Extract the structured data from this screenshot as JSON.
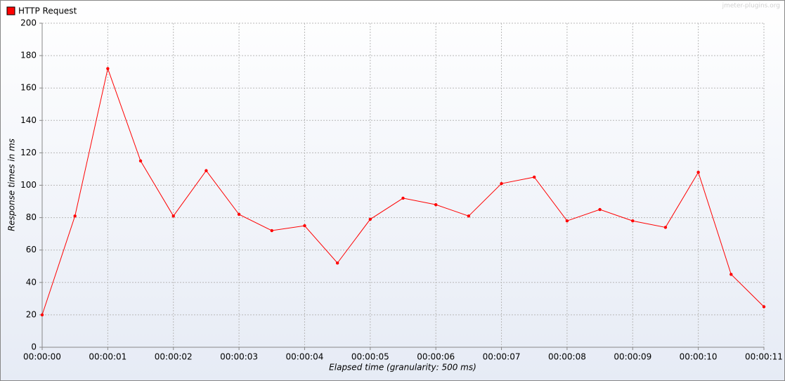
{
  "chart_data": {
    "type": "line",
    "watermark": "jmeter-plugins.org",
    "xlabel": "Elapsed time (granularity: 500 ms)",
    "ylabel": "Response times in ms",
    "x": [
      0,
      0.5,
      1,
      1.5,
      2,
      2.5,
      3,
      3.5,
      4,
      4.5,
      5,
      5.5,
      6,
      6.5,
      7,
      7.5,
      8,
      8.5,
      9,
      9.5,
      10,
      10.5,
      11
    ],
    "series": [
      {
        "name": "HTTP Request",
        "color": "#ff0000",
        "values": [
          20,
          81,
          172,
          115,
          81,
          109,
          82,
          72,
          75,
          52,
          79,
          92,
          88,
          81,
          101,
          105,
          78,
          85,
          78,
          74,
          108,
          45,
          25
        ]
      }
    ],
    "xlim": [
      0,
      11
    ],
    "xticks": [
      {
        "value": 0,
        "label": "00:00:00"
      },
      {
        "value": 1,
        "label": "00:00:01"
      },
      {
        "value": 2,
        "label": "00:00:02"
      },
      {
        "value": 3,
        "label": "00:00:03"
      },
      {
        "value": 4,
        "label": "00:00:04"
      },
      {
        "value": 5,
        "label": "00:00:05"
      },
      {
        "value": 6,
        "label": "00:00:06"
      },
      {
        "value": 7,
        "label": "00:00:07"
      },
      {
        "value": 8,
        "label": "00:00:08"
      },
      {
        "value": 9,
        "label": "00:00:09"
      },
      {
        "value": 10,
        "label": "00:00:10"
      },
      {
        "value": 11,
        "label": "00:00:11"
      }
    ],
    "ylim": [
      0,
      200
    ],
    "yticks": [
      0,
      20,
      40,
      60,
      80,
      100,
      120,
      140,
      160,
      180,
      200
    ],
    "grid": true,
    "legend": "top-left"
  }
}
